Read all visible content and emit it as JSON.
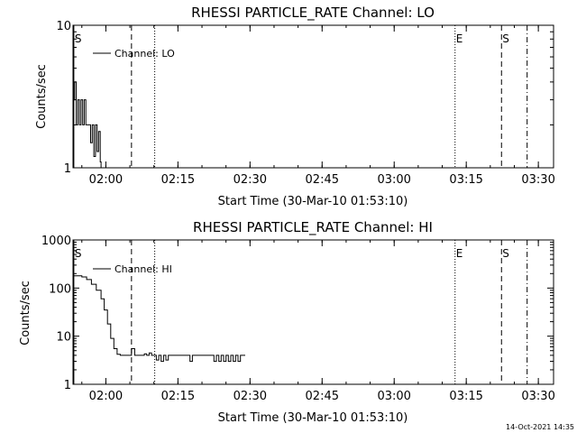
{
  "footer_timestamp": "14-Oct-2021 14:35",
  "chart_data": [
    {
      "type": "line",
      "title": "RHESSI PARTICLE_RATE Channel: LO",
      "xlabel": "Start Time (30-Mar-10 01:53:10)",
      "ylabel": "Counts/sec",
      "yscale": "log",
      "ylim": [
        1,
        10
      ],
      "xlim": [
        "01:53:10",
        "03:33:10"
      ],
      "ytick_values": [
        1,
        10
      ],
      "ytick_labels": [
        "1",
        "10"
      ],
      "xtick_values": [
        "02:00",
        "02:15",
        "02:30",
        "02:45",
        "03:00",
        "03:15",
        "03:30"
      ],
      "xtick_labels": [
        "02:00",
        "02:15",
        "02:30",
        "02:45",
        "03:00",
        "03:15",
        "03:30"
      ],
      "legend": {
        "position": "top-left",
        "entry": "Channel: LO"
      },
      "series": [
        {
          "name": "Channel: LO",
          "x": [
            "01:53:10",
            "01:53:30",
            "01:53:50",
            "01:54:10",
            "01:54:30",
            "01:54:50",
            "01:55:10",
            "01:55:30",
            "01:55:50",
            "01:56:10",
            "01:56:30",
            "01:56:50",
            "01:57:10",
            "01:57:30",
            "01:57:50",
            "01:58:10",
            "01:58:30",
            "01:58:50",
            "01:59:00"
          ],
          "y": [
            3,
            4,
            2,
            3,
            2,
            3,
            2,
            3,
            2,
            2,
            2,
            1.5,
            2,
            1.2,
            2,
            1.3,
            1.8,
            1.1,
            1
          ]
        }
      ],
      "markers": [
        {
          "time": "01:53:20",
          "style": "solid",
          "label": "S"
        },
        {
          "time": "02:05:20",
          "style": "dashed",
          "label": ""
        },
        {
          "time": "02:10:10",
          "style": "dotted",
          "label": ""
        },
        {
          "time": "03:12:40",
          "style": "dotted",
          "label": "E"
        },
        {
          "time": "03:22:20",
          "style": "dashed",
          "label": "S"
        },
        {
          "time": "03:27:40",
          "style": "dashdot",
          "label": ""
        }
      ]
    },
    {
      "type": "line",
      "title": "RHESSI PARTICLE_RATE Channel: HI",
      "xlabel": "Start Time (30-Mar-10 01:53:10)",
      "ylabel": "Counts/sec",
      "yscale": "log",
      "ylim": [
        1,
        1000
      ],
      "xlim": [
        "01:53:10",
        "03:33:10"
      ],
      "ytick_values": [
        1,
        10,
        100,
        1000
      ],
      "ytick_labels": [
        "1",
        "10",
        "100",
        "1000"
      ],
      "xtick_values": [
        "02:00",
        "02:15",
        "02:30",
        "02:45",
        "03:00",
        "03:15",
        "03:30"
      ],
      "xtick_labels": [
        "02:00",
        "02:15",
        "02:30",
        "02:45",
        "03:00",
        "03:15",
        "03:30"
      ],
      "legend": {
        "position": "top-left",
        "entry": "Channel: HI"
      },
      "series": [
        {
          "name": "Channel: HI",
          "x": [
            "01:53:10",
            "01:54:00",
            "01:55:00",
            "01:56:00",
            "01:57:00",
            "01:58:00",
            "01:59:00",
            "01:59:40",
            "02:00:20",
            "02:01:00",
            "02:01:40",
            "02:02:20",
            "02:03:00",
            "02:04:00",
            "02:05:00",
            "02:05:20",
            "02:06:00",
            "02:07:00",
            "02:08:00",
            "02:08:30",
            "02:09:00",
            "02:09:30",
            "02:10:00",
            "02:10:30",
            "02:11:00",
            "02:11:30",
            "02:12:00",
            "02:12:30",
            "02:13:00",
            "02:14:00",
            "02:16:00",
            "02:17:00",
            "02:17:30",
            "02:18:00",
            "02:20:00",
            "02:21:00",
            "02:22:00",
            "02:22:30",
            "02:23:00",
            "02:23:30",
            "02:24:00",
            "02:24:30",
            "02:25:00",
            "02:25:30",
            "02:26:00",
            "02:26:30",
            "02:27:00",
            "02:27:30",
            "02:28:00",
            "02:29:00"
          ],
          "y": [
            180,
            180,
            170,
            150,
            120,
            90,
            60,
            35,
            18,
            9,
            5.5,
            4.2,
            4,
            4,
            4,
            5.5,
            4,
            4,
            4.3,
            4,
            4.5,
            4,
            4,
            3.2,
            4,
            3,
            4,
            3.2,
            4,
            4,
            4,
            4,
            3,
            4,
            4,
            4,
            4,
            3,
            4,
            3,
            4,
            3,
            4,
            3,
            4,
            3,
            4,
            3,
            4,
            4
          ]
        }
      ],
      "markers": [
        {
          "time": "01:53:20",
          "style": "solid",
          "label": "S"
        },
        {
          "time": "02:05:20",
          "style": "dashed",
          "label": ""
        },
        {
          "time": "02:10:10",
          "style": "dotted",
          "label": ""
        },
        {
          "time": "03:12:40",
          "style": "dotted",
          "label": "E"
        },
        {
          "time": "03:22:20",
          "style": "dashed",
          "label": "S"
        },
        {
          "time": "03:27:40",
          "style": "dashdot",
          "label": ""
        }
      ]
    }
  ]
}
